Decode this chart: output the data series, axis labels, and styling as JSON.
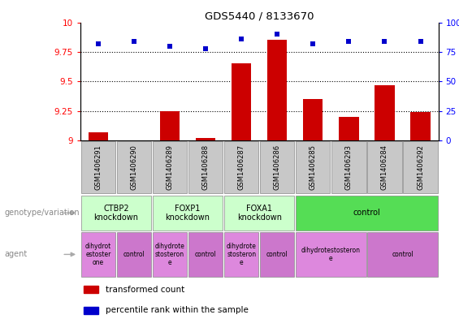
{
  "title": "GDS5440 / 8133670",
  "samples": [
    "GSM1406291",
    "GSM1406290",
    "GSM1406289",
    "GSM1406288",
    "GSM1406287",
    "GSM1406286",
    "GSM1406285",
    "GSM1406293",
    "GSM1406284",
    "GSM1406292"
  ],
  "transformed_counts": [
    9.07,
    9.0,
    9.25,
    9.02,
    9.65,
    9.85,
    9.35,
    9.2,
    9.47,
    9.24
  ],
  "percentile_ranks": [
    82,
    84,
    80,
    78,
    86,
    90,
    82,
    84,
    84,
    84
  ],
  "ylim_left": [
    9.0,
    10.0
  ],
  "ylim_right": [
    0,
    100
  ],
  "yticks_left": [
    9.0,
    9.25,
    9.5,
    9.75,
    10.0
  ],
  "yticks_right": [
    0,
    25,
    50,
    75,
    100
  ],
  "ytick_labels_left": [
    "9",
    "9.25",
    "9.5",
    "9.75",
    "10"
  ],
  "ytick_labels_right": [
    "0",
    "25",
    "50",
    "75",
    "100%"
  ],
  "hlines": [
    9.25,
    9.5,
    9.75
  ],
  "bar_color": "#cc0000",
  "dot_color": "#0000cc",
  "genotype_groups": [
    {
      "label": "CTBP2\nknockdown",
      "start": 0,
      "end": 2,
      "color": "#ccffcc"
    },
    {
      "label": "FOXP1\nknockdown",
      "start": 2,
      "end": 4,
      "color": "#ccffcc"
    },
    {
      "label": "FOXA1\nknockdown",
      "start": 4,
      "end": 6,
      "color": "#ccffcc"
    },
    {
      "label": "control",
      "start": 6,
      "end": 10,
      "color": "#55dd55"
    }
  ],
  "agent_groups": [
    {
      "label": "dihydrot\nestoster\none",
      "start": 0,
      "end": 1,
      "color": "#dd88dd"
    },
    {
      "label": "control",
      "start": 1,
      "end": 2,
      "color": "#cc77cc"
    },
    {
      "label": "dihydrote\nstosteron\ne",
      "start": 2,
      "end": 3,
      "color": "#dd88dd"
    },
    {
      "label": "control",
      "start": 3,
      "end": 4,
      "color": "#cc77cc"
    },
    {
      "label": "dihydrote\nstosteron\ne",
      "start": 4,
      "end": 5,
      "color": "#dd88dd"
    },
    {
      "label": "control",
      "start": 5,
      "end": 6,
      "color": "#cc77cc"
    },
    {
      "label": "dihydrotestosteron\ne",
      "start": 6,
      "end": 8,
      "color": "#dd88dd"
    },
    {
      "label": "control",
      "start": 8,
      "end": 10,
      "color": "#cc77cc"
    }
  ],
  "sample_box_color": "#c8c8c8",
  "genotype_label": "genotype/variation",
  "agent_label": "agent",
  "legend_items": [
    {
      "label": "transformed count",
      "color": "#cc0000"
    },
    {
      "label": "percentile rank within the sample",
      "color": "#0000cc"
    }
  ],
  "figsize": [
    5.65,
    3.93
  ],
  "dpi": 100
}
